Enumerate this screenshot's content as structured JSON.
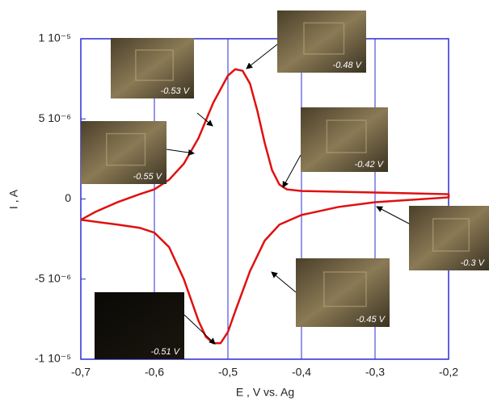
{
  "chart_data": {
    "type": "line",
    "x_label": "E , V vs. Ag",
    "y_label": "I , A",
    "xlim": [
      -0.7,
      -0.2
    ],
    "xticks": [
      {
        "value": -0.7,
        "label": "-0,7"
      },
      {
        "value": -0.6,
        "label": "-0,6"
      },
      {
        "value": -0.5,
        "label": "-0,5"
      },
      {
        "value": -0.4,
        "label": "-0,4"
      },
      {
        "value": -0.3,
        "label": "-0,3"
      },
      {
        "value": -0.2,
        "label": "-0,2"
      }
    ],
    "ylim": [
      -1e-05,
      1e-05
    ],
    "yticks": [
      {
        "value": -1e-05,
        "label": "-1 10⁻⁵"
      },
      {
        "value": -5e-06,
        "label": "-5 10⁻⁶"
      },
      0,
      {
        "value": 5e-06,
        "label": "5 10⁻⁶"
      },
      {
        "value": 1e-05,
        "label": "1 10⁻⁵"
      }
    ],
    "grid": "x",
    "frame_color": "#2b2bd6",
    "series": [
      {
        "color": "#e01010",
        "x": [
          -0.7,
          -0.68,
          -0.65,
          -0.62,
          -0.6,
          -0.58,
          -0.56,
          -0.54,
          -0.52,
          -0.5,
          -0.49,
          -0.48,
          -0.47,
          -0.46,
          -0.45,
          -0.44,
          -0.43,
          -0.42,
          -0.4,
          -0.3,
          -0.2,
          -0.2,
          -0.3,
          -0.35,
          -0.4,
          -0.43,
          -0.45,
          -0.47,
          -0.49,
          -0.5,
          -0.51,
          -0.52,
          -0.53,
          -0.54,
          -0.56,
          -0.58,
          -0.6,
          -0.62,
          -0.65,
          -0.7
        ],
        "values": [
          -1.3e-06,
          -8e-07,
          -2e-07,
          3e-07,
          6e-07,
          1.2e-06,
          2.2e-06,
          3.8e-06,
          6e-06,
          7.7e-06,
          8.1e-06,
          8e-06,
          7.2e-06,
          5.5e-06,
          3.5e-06,
          1.8e-06,
          9e-07,
          6e-07,
          5e-07,
          4e-07,
          3e-07,
          1e-07,
          -2e-07,
          -5e-07,
          -1e-06,
          -1.6e-06,
          -2.6e-06,
          -4.5e-06,
          -7e-06,
          -8.3e-06,
          -9e-06,
          -9e-06,
          -8.6e-06,
          -7.6e-06,
          -5e-06,
          -3e-06,
          -2.1e-06,
          -1.8e-06,
          -1.6e-06,
          -1.3e-06
        ]
      }
    ],
    "annotations": [
      "-0.48 V",
      "-0.53 V",
      "-0.55 V",
      "-0.42 V",
      "-0.3 V",
      "-0.45 V",
      "-0.51 V"
    ]
  }
}
